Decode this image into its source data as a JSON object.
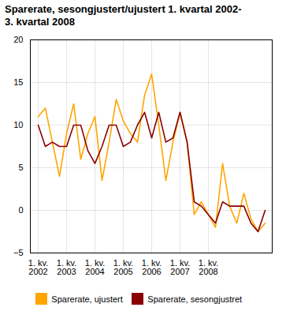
{
  "chart_data": {
    "type": "line",
    "title": "Sparerate, sesongjustert/ujustert 1. kvartal 2002-\n3. kvartal 2008",
    "categories": [
      "1. kv.\n2002",
      null,
      null,
      null,
      "1. kv.\n2003",
      null,
      null,
      null,
      "1. kv.\n2004",
      null,
      null,
      null,
      "1. kv.\n2005",
      null,
      null,
      null,
      "1. kv.\n2006",
      null,
      null,
      null,
      "1. kv.\n2007",
      null,
      null,
      null,
      "1. kv.\n2008",
      null,
      null,
      null,
      null,
      null,
      null,
      null,
      null
    ],
    "series": [
      {
        "name": "Sparerate, ujustert",
        "color": "#FFA500",
        "values": [
          11,
          12,
          8,
          4,
          9,
          12.5,
          6,
          9,
          11,
          3.5,
          8,
          13,
          10.5,
          9,
          8,
          13.5,
          16,
          10,
          3.5,
          8,
          11.5,
          8,
          -0.5,
          1.0,
          -0.5,
          -2.0,
          5.5,
          0.5,
          -1.5,
          2.0,
          -1.0,
          -2.5,
          -1.5
        ]
      },
      {
        "name": "Sparerate, sesongjustret",
        "color": "#8B0000",
        "values": [
          10,
          7.5,
          8,
          7.5,
          7.5,
          10,
          10,
          7,
          5.5,
          7.5,
          10,
          10,
          7.5,
          8,
          10,
          11.5,
          8.5,
          11.5,
          8,
          8.5,
          11.5,
          8,
          1.0,
          0.5,
          -0.5,
          -1.5,
          1.0,
          0.5,
          0.5,
          0.5,
          -1.5,
          -2.5,
          0
        ]
      }
    ],
    "ylim": [
      -5,
      20
    ],
    "yticks": [
      -5,
      0,
      5,
      10,
      15,
      20
    ],
    "grid": true,
    "legend": "bottom"
  }
}
